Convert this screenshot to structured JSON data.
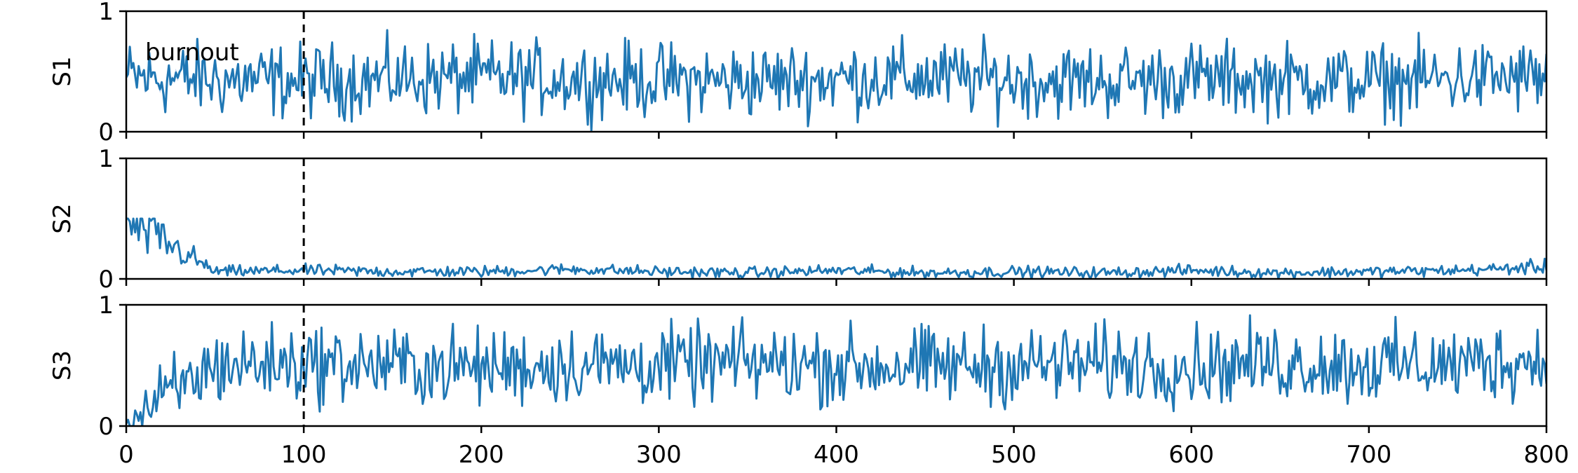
{
  "chart_data": {
    "type": "line",
    "xlim": [
      0,
      800
    ],
    "xticks": [
      0,
      100,
      200,
      300,
      400,
      500,
      600,
      700,
      800
    ],
    "x_tick_labels": [
      "0",
      "100",
      "200",
      "300",
      "400",
      "500",
      "600",
      "700",
      "800"
    ],
    "ylim": [
      0,
      1
    ],
    "yticks": [
      0,
      1
    ],
    "y_tick_labels": [
      "0",
      "1"
    ],
    "burnout_x": 100,
    "annotation": "burnout",
    "line_color": "#1f77b4",
    "burnout_fill_color": "#aec7e8",
    "panels": [
      {
        "ylabel": "S1",
        "x": [
          0,
          50,
          100,
          150,
          200,
          250,
          300,
          350,
          400,
          450,
          500,
          550,
          600,
          650,
          700,
          750,
          800
        ],
        "values": [
          0.45,
          0.43,
          0.42,
          0.44,
          0.45,
          0.44,
          0.43,
          0.42,
          0.44,
          0.45,
          0.43,
          0.42,
          0.44,
          0.43,
          0.42,
          0.44,
          0.45
        ],
        "mean": 0.43,
        "range": [
          0.0,
          0.98
        ]
      },
      {
        "ylabel": "S2",
        "x": [
          0,
          50,
          100,
          150,
          200,
          250,
          300,
          350,
          400,
          450,
          500,
          550,
          600,
          650,
          700,
          750,
          800
        ],
        "values": [
          0.5,
          0.06,
          0.07,
          0.06,
          0.06,
          0.08,
          0.06,
          0.05,
          0.07,
          0.05,
          0.06,
          0.05,
          0.07,
          0.05,
          0.06,
          0.07,
          0.1
        ],
        "mean": 0.06,
        "range": [
          0.0,
          0.5
        ]
      },
      {
        "ylabel": "S3",
        "x": [
          0,
          50,
          100,
          150,
          200,
          250,
          300,
          350,
          400,
          450,
          500,
          550,
          600,
          650,
          700,
          750,
          800
        ],
        "values": [
          0.02,
          0.5,
          0.52,
          0.5,
          0.48,
          0.51,
          0.5,
          0.52,
          0.5,
          0.49,
          0.5,
          0.51,
          0.5,
          0.52,
          0.5,
          0.51,
          0.55
        ],
        "mean": 0.5,
        "range": [
          0.0,
          0.96
        ]
      }
    ]
  }
}
